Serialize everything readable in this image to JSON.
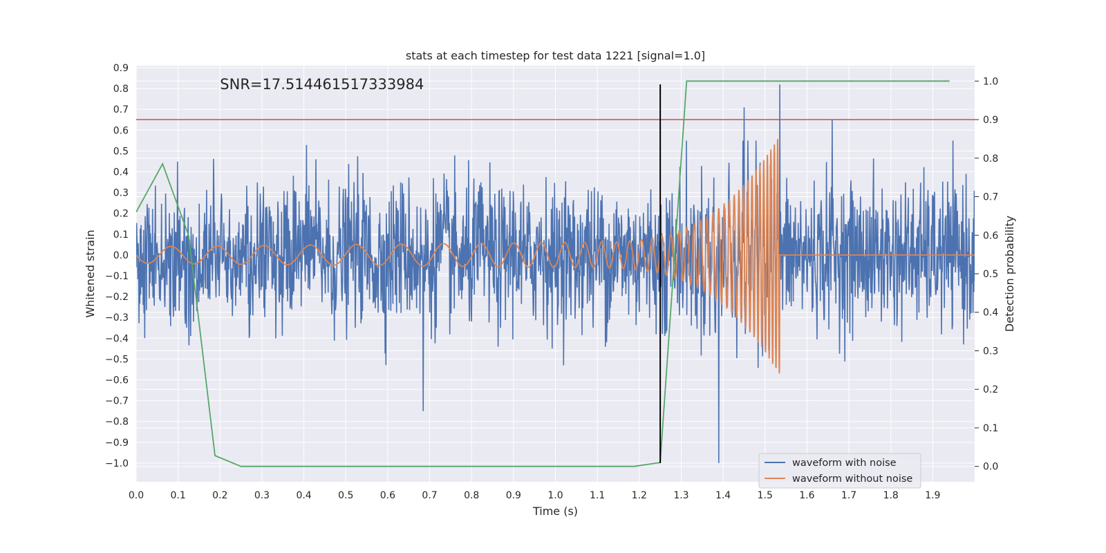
{
  "chart_data": {
    "type": "line",
    "title": "stats at each timestep for test data 1221 [signal=1.0]",
    "xlabel": "Time (s)",
    "ylabel": "Whitened strain",
    "ylabel_right": "Detection probability",
    "annotation": "SNR=17.514461517333984",
    "xlim": [
      0.0,
      2.0
    ],
    "ylim": [
      -1.09,
      0.91
    ],
    "ylim_right": [
      -0.04,
      1.04
    ],
    "x_ticks": [
      "0.0",
      "0.1",
      "0.2",
      "0.3",
      "0.4",
      "0.5",
      "0.6",
      "0.7",
      "0.8",
      "0.9",
      "1.0",
      "1.1",
      "1.2",
      "1.3",
      "1.4",
      "1.5",
      "1.6",
      "1.7",
      "1.8",
      "1.9"
    ],
    "y_ticks": [
      "0.9",
      "0.8",
      "0.7",
      "0.6",
      "0.5",
      "0.4",
      "0.3",
      "0.2",
      "0.1",
      "0.0",
      "−0.1",
      "−0.2",
      "−0.3",
      "−0.4",
      "−0.5",
      "−0.6",
      "−0.7",
      "−0.8",
      "−0.9",
      "−1.0"
    ],
    "y_ticks_right": [
      "1.0",
      "0.9",
      "0.8",
      "0.7",
      "0.6",
      "0.5",
      "0.4",
      "0.3",
      "0.2",
      "0.1",
      "0.0"
    ],
    "grid": true,
    "legend_position": "bottom-right",
    "colors": {
      "noise": "#4c72b0",
      "clean": "#dd8452",
      "prob": "#55a868",
      "threshold": "#c44e52",
      "marker": "#000000",
      "background": "#eaeaf2"
    },
    "series": [
      {
        "name": "waveform with noise",
        "axis": "left",
        "description_values": "dense random strain, amplitude mostly within [-0.5, 0.5]",
        "notable_extremes": [
          {
            "x": 0.685,
            "y": -0.75
          },
          {
            "x": 1.39,
            "y": -1.0
          },
          {
            "x": 1.535,
            "y": 0.82
          },
          {
            "x": 1.45,
            "y": 0.71
          },
          {
            "x": 1.66,
            "y": 0.65
          }
        ]
      },
      {
        "name": "waveform without noise",
        "axis": "left",
        "chirp": {
          "start_x": 0.0,
          "merger_x": 1.535,
          "start_amplitude": 0.04,
          "peak_amplitude": 0.55,
          "start_freq": 9,
          "end_freq": 130
        },
        "flat_after": {
          "x": 1.54,
          "y": 0.0,
          "end_x": 2.0
        }
      },
      {
        "name": "",
        "axis": "right",
        "x": [
          0.0,
          0.063,
          0.125,
          0.188,
          0.25,
          0.313,
          1.188,
          1.25,
          1.313,
          1.375,
          1.94
        ],
        "y": [
          0.66,
          0.785,
          0.6,
          0.028,
          0.0,
          0.0,
          0.0,
          0.01,
          1.0,
          1.0,
          1.0
        ]
      }
    ],
    "threshold_line": {
      "axis": "right",
      "y": 0.9
    },
    "vertical_marker": {
      "x": 1.25,
      "y_from": -1.0,
      "y_to": 0.82
    }
  }
}
